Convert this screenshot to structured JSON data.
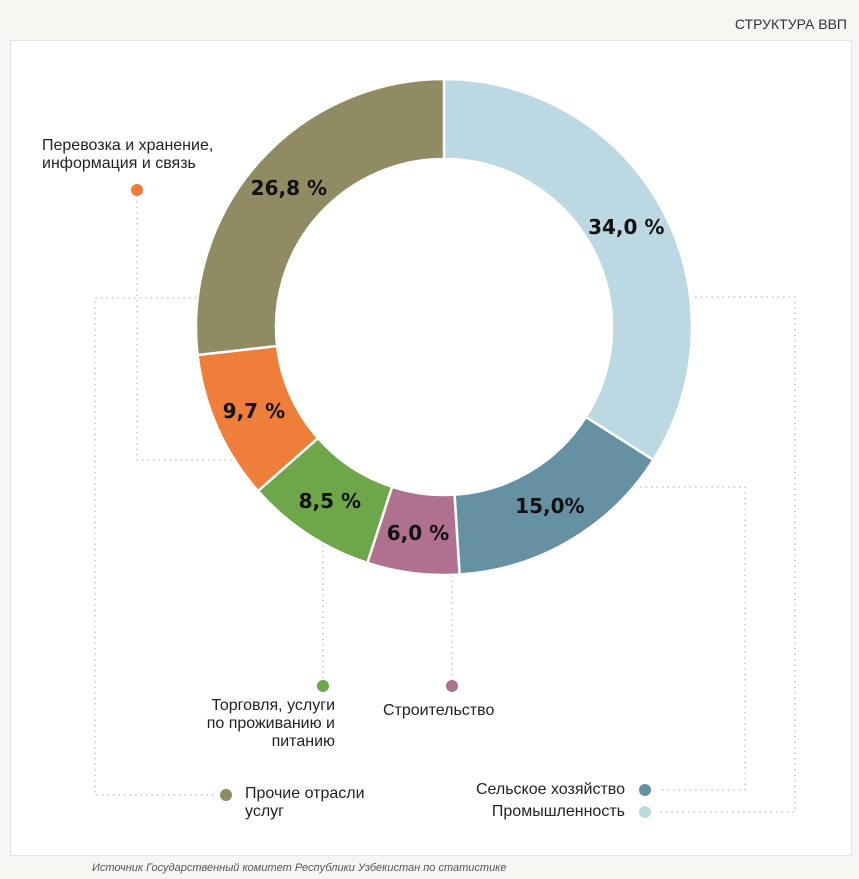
{
  "chart_data": {
    "type": "donut",
    "title": "СТРУКТУРА ВВП",
    "categories": [
      "Промышленность",
      "Сельское хозяйство",
      "Строительство",
      "Торговля, услуги\nпо проживанию и\nпитанию",
      "Перевозка и хранение,\nинформация и связь",
      "Прочие отрасли\nуслуг"
    ],
    "values": [
      34.0,
      15.0,
      6.0,
      8.5,
      9.7,
      26.8
    ],
    "value_labels": [
      "34,0 %",
      "15,0%",
      "6,0 %",
      "8,5 %",
      "9,7 %",
      "26,8 %"
    ],
    "colors": [
      "#bcd9e3",
      "#6591a3",
      "#b0708f",
      "#6ea64a",
      "#ef7e3a",
      "#918b63"
    ],
    "source": "Источник Государственный комитет Республики Узбекистан по статистике"
  }
}
